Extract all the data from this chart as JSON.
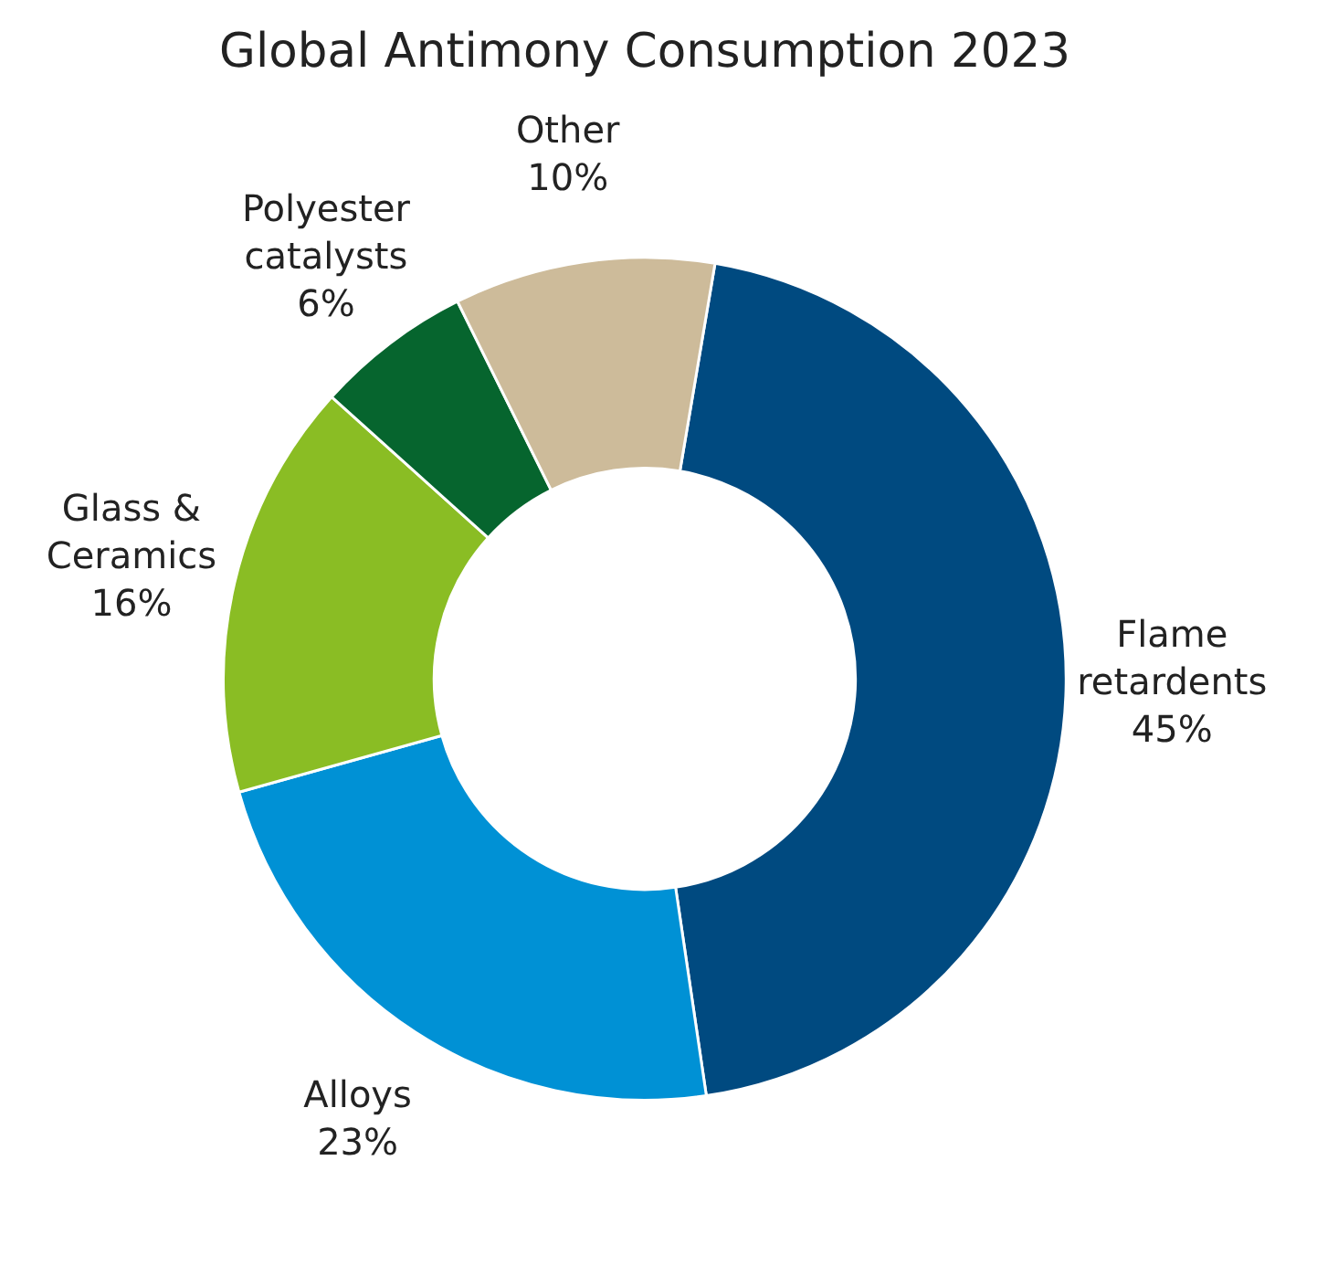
{
  "chart_data": {
    "type": "donut",
    "title": "Global Antimony Consumption 2023",
    "categories": [
      "Flame retardents",
      "Alloys",
      "Glass & Ceramics",
      "Polyester catalysts",
      "Other"
    ],
    "values": [
      45,
      23,
      16,
      6,
      10
    ],
    "colors": [
      "#004a80",
      "#0091d5",
      "#8abd24",
      "#06652e",
      "#cdbb9a"
    ],
    "value_labels": [
      "45%",
      "23%",
      "16%",
      "6%",
      "10%"
    ],
    "legend": false
  }
}
